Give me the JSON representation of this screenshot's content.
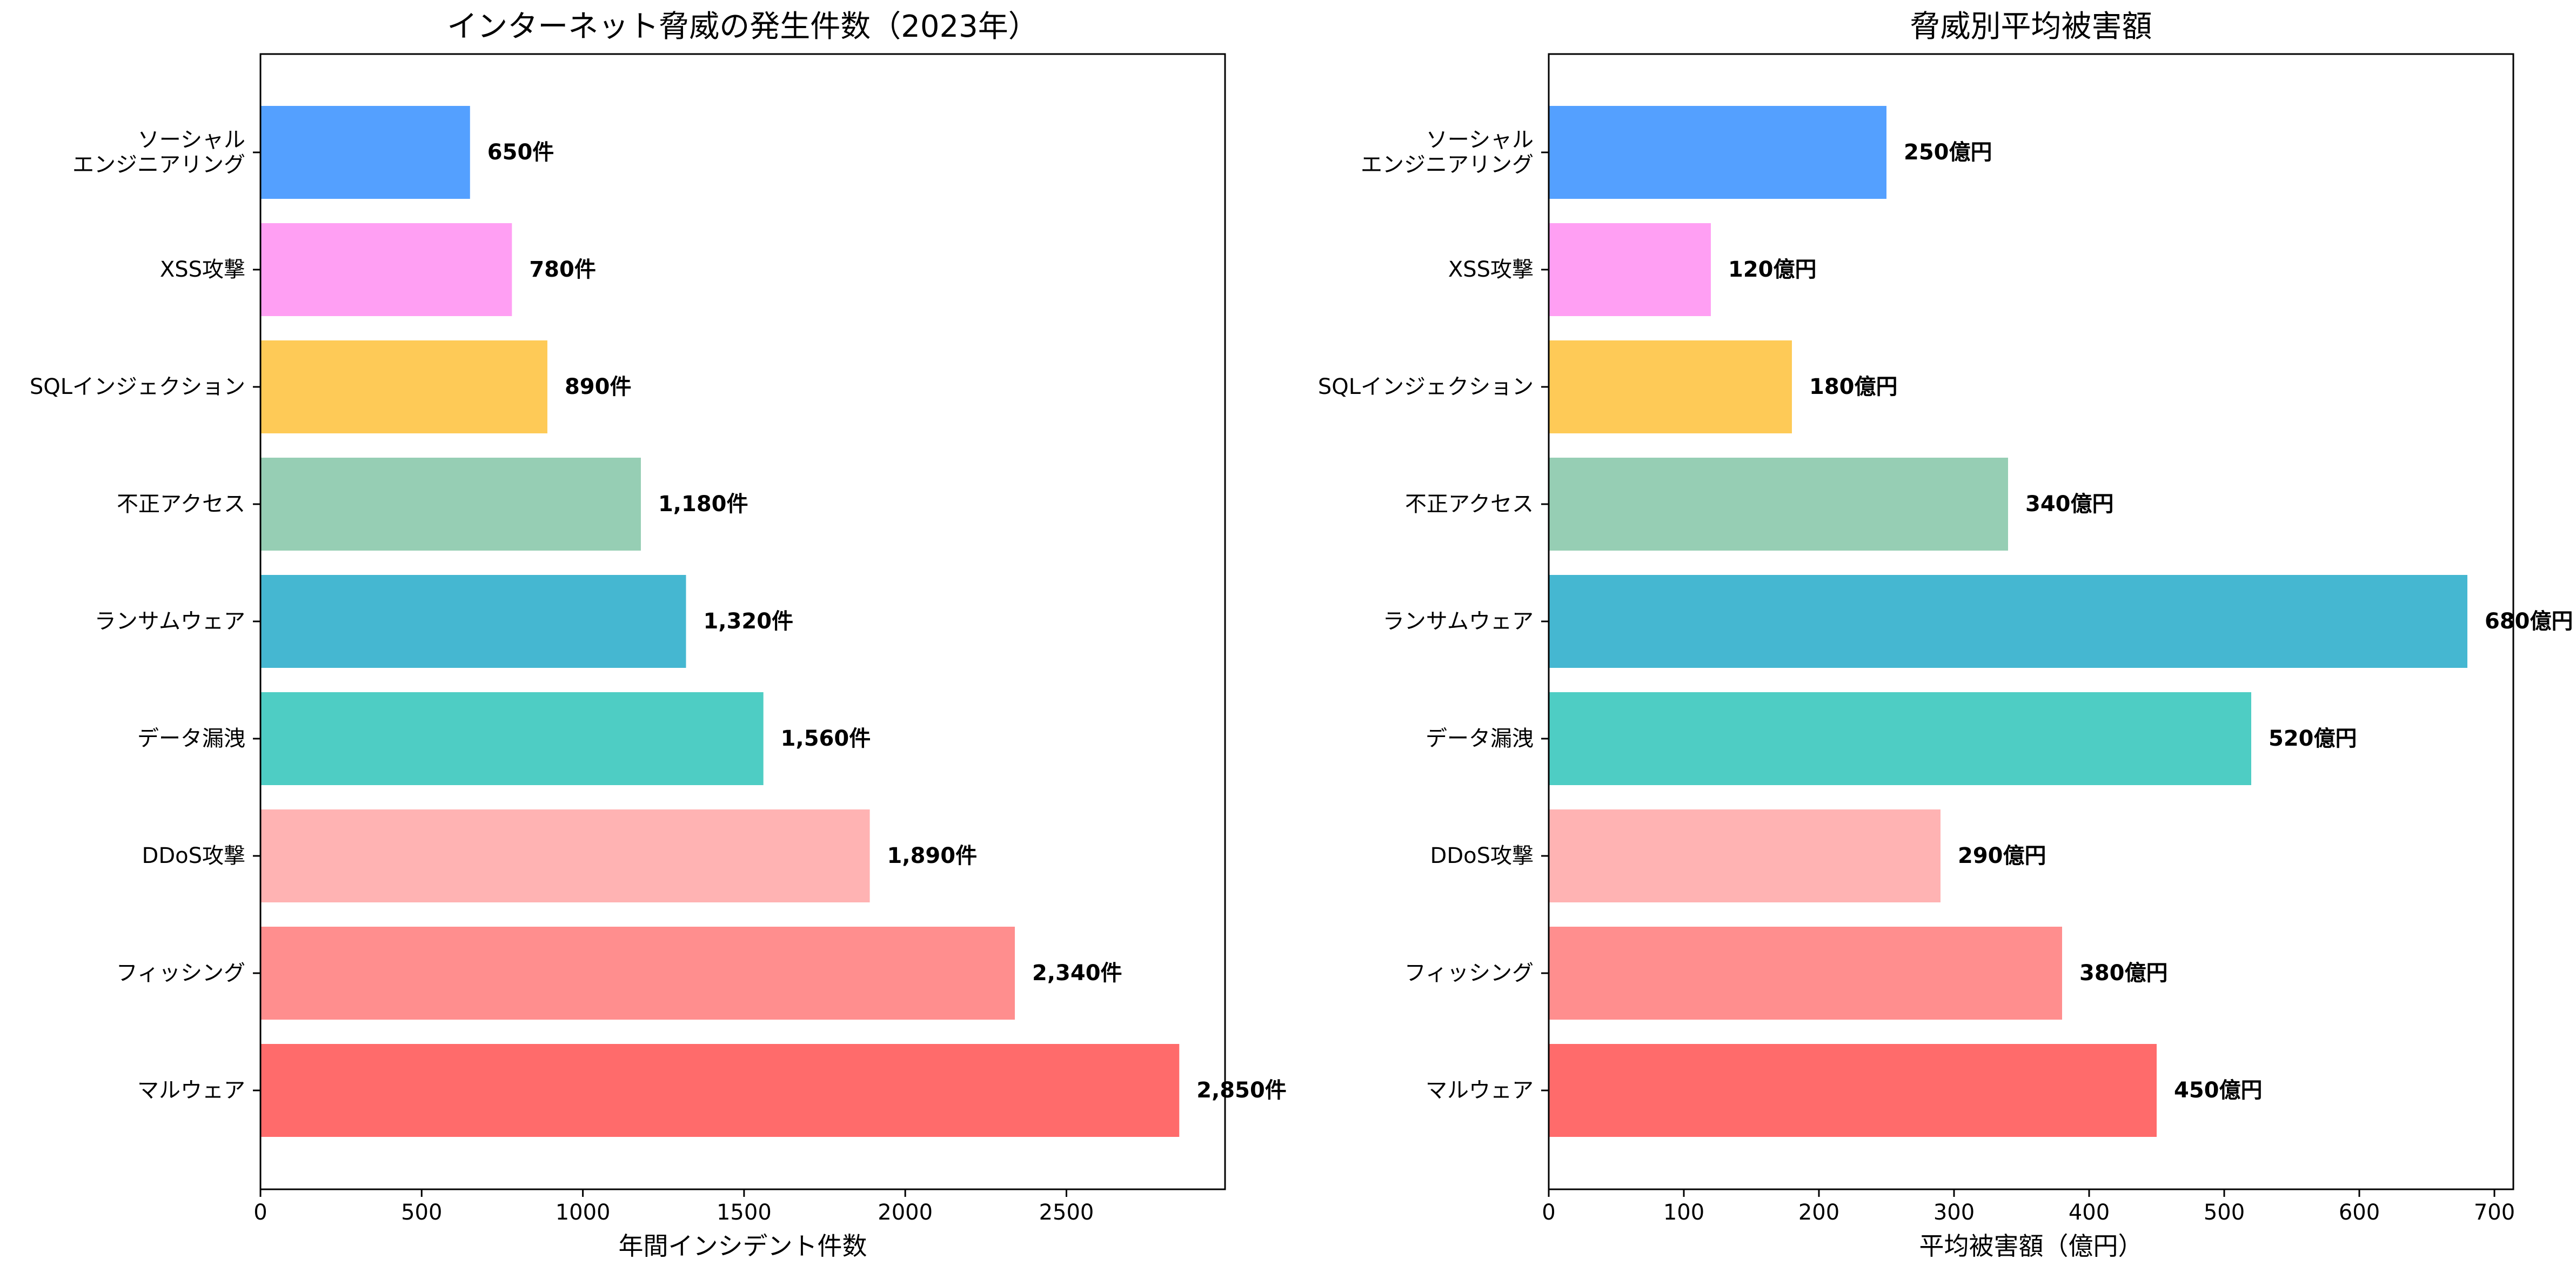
{
  "chart_data": [
    {
      "type": "bar",
      "orientation": "horizontal",
      "title": "インターネット脅威の発生件数（2023年）",
      "xlabel": "年間インシデント件数",
      "ylabel": "",
      "xlim": [
        0,
        2992
      ],
      "xticks": [
        "0",
        "500",
        "1000",
        "1500",
        "2000",
        "2500"
      ],
      "xtick_values": [
        0,
        500,
        1000,
        1500,
        2000,
        2500
      ],
      "categories": [
        "マルウェア",
        "フィッシング",
        "DDoS攻撃",
        "データ漏洩",
        "ランサムウェア",
        "不正アクセス",
        "SQLインジェクション",
        "XSS攻撃",
        "ソーシャル\nエンジニアリング"
      ],
      "values": [
        2850,
        2340,
        1890,
        1560,
        1320,
        1180,
        890,
        780,
        650
      ],
      "data_labels": [
        "2,850件",
        "2,340件",
        "1,890件",
        "1,560件",
        "1,320件",
        "1,180件",
        "890件",
        "780件",
        "650件"
      ],
      "colors": [
        "#ff6b6b",
        "#ff8e8e",
        "#ffb3b3",
        "#4ecdc4",
        "#45b7d1",
        "#96ceb4",
        "#feca57",
        "#ff9ff3",
        "#54a0ff"
      ],
      "grid": false
    },
    {
      "type": "bar",
      "orientation": "horizontal",
      "title": "脅威別平均被害額",
      "xlabel": "平均被害額（億円）",
      "ylabel": "",
      "xlim": [
        0,
        714
      ],
      "xticks": [
        "0",
        "100",
        "200",
        "300",
        "400",
        "500",
        "600",
        "700"
      ],
      "xtick_values": [
        0,
        100,
        200,
        300,
        400,
        500,
        600,
        700
      ],
      "categories": [
        "マルウェア",
        "フィッシング",
        "DDoS攻撃",
        "データ漏洩",
        "ランサムウェア",
        "不正アクセス",
        "SQLインジェクション",
        "XSS攻撃",
        "ソーシャル\nエンジニアリング"
      ],
      "values": [
        450,
        380,
        290,
        520,
        680,
        340,
        180,
        120,
        250
      ],
      "data_labels": [
        "450億円",
        "380億円",
        "290億円",
        "520億円",
        "680億円",
        "340億円",
        "180億円",
        "120億円",
        "250億円"
      ],
      "colors": [
        "#ff6b6b",
        "#ff8e8e",
        "#ffb3b3",
        "#4ecdc4",
        "#45b7d1",
        "#96ceb4",
        "#feca57",
        "#ff9ff3",
        "#54a0ff"
      ],
      "grid": false
    }
  ]
}
